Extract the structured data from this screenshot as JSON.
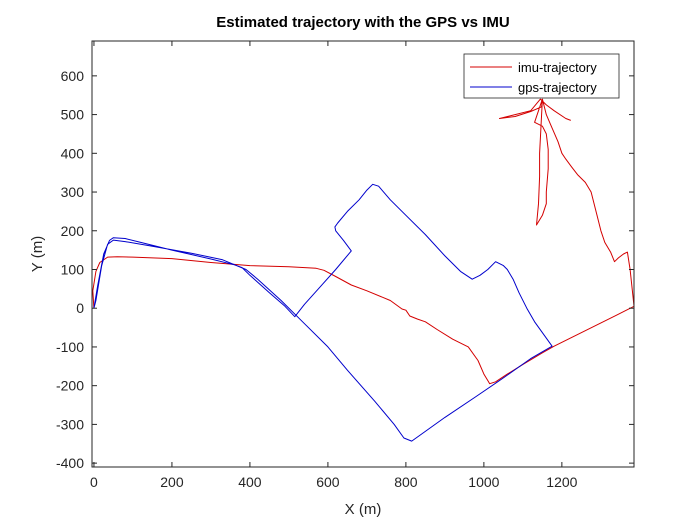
{
  "chart_data": {
    "type": "line",
    "title": "Estimated trajectory with the GPS vs IMU",
    "xlabel": "X (m)",
    "ylabel": "Y (m)",
    "xlim": [
      -5,
      1385
    ],
    "ylim": [
      -410,
      690
    ],
    "xticks": [
      0,
      200,
      400,
      600,
      800,
      1000,
      1200
    ],
    "yticks": [
      -400,
      -300,
      -200,
      -100,
      0,
      100,
      200,
      300,
      400,
      500,
      600
    ],
    "grid": false,
    "legend_position": "top-right",
    "series": [
      {
        "name": "imu-trajectory",
        "color": "#d40000",
        "points": [
          [
            0,
            0
          ],
          [
            -3,
            45
          ],
          [
            5,
            95
          ],
          [
            15,
            118
          ],
          [
            35,
            132
          ],
          [
            60,
            133
          ],
          [
            100,
            132
          ],
          [
            200,
            128
          ],
          [
            300,
            118
          ],
          [
            400,
            110
          ],
          [
            500,
            107
          ],
          [
            570,
            103
          ],
          [
            590,
            98
          ],
          [
            620,
            82
          ],
          [
            660,
            60
          ],
          [
            700,
            45
          ],
          [
            760,
            20
          ],
          [
            790,
            -2
          ],
          [
            800,
            -5
          ],
          [
            810,
            -20
          ],
          [
            830,
            -28
          ],
          [
            850,
            -35
          ],
          [
            880,
            -55
          ],
          [
            920,
            -80
          ],
          [
            960,
            -100
          ],
          [
            985,
            -135
          ],
          [
            1000,
            -170
          ],
          [
            1015,
            -195
          ],
          [
            1030,
            -190
          ],
          [
            1060,
            -170
          ],
          [
            1100,
            -145
          ],
          [
            1150,
            -115
          ],
          [
            1180,
            -98
          ],
          [
            1220,
            -78
          ],
          [
            1260,
            -58
          ],
          [
            1300,
            -38
          ],
          [
            1340,
            -18
          ],
          [
            1385,
            5
          ],
          [
            1383,
            25
          ],
          [
            1375,
            100
          ],
          [
            1368,
            145
          ],
          [
            1358,
            140
          ],
          [
            1345,
            130
          ],
          [
            1335,
            120
          ],
          [
            1325,
            145
          ],
          [
            1310,
            170
          ],
          [
            1300,
            200
          ],
          [
            1290,
            240
          ],
          [
            1275,
            300
          ],
          [
            1260,
            325
          ],
          [
            1240,
            345
          ],
          [
            1225,
            365
          ],
          [
            1210,
            385
          ],
          [
            1200,
            400
          ],
          [
            1190,
            430
          ],
          [
            1175,
            465
          ],
          [
            1160,
            500
          ],
          [
            1150,
            540
          ],
          [
            1140,
            510
          ],
          [
            1130,
            480
          ],
          [
            1150,
            470
          ],
          [
            1160,
            450
          ],
          [
            1165,
            410
          ],
          [
            1165,
            360
          ],
          [
            1160,
            300
          ],
          [
            1160,
            270
          ],
          [
            1150,
            240
          ],
          [
            1135,
            215
          ],
          [
            1140,
            270
          ],
          [
            1143,
            340
          ],
          [
            1143,
            400
          ],
          [
            1146,
            460
          ],
          [
            1150,
            540
          ],
          [
            1148,
            520
          ],
          [
            1120,
            508
          ],
          [
            1080,
            495
          ],
          [
            1040,
            490
          ],
          [
            1080,
            500
          ],
          [
            1120,
            510
          ],
          [
            1145,
            540
          ],
          [
            1160,
            525
          ],
          [
            1180,
            510
          ],
          [
            1210,
            490
          ],
          [
            1223,
            485
          ]
        ]
      },
      {
        "name": "gps-trajectory",
        "color": "#0000cc",
        "points": [
          [
            0,
            0
          ],
          [
            10,
            60
          ],
          [
            25,
            140
          ],
          [
            40,
            175
          ],
          [
            50,
            182
          ],
          [
            80,
            180
          ],
          [
            120,
            170
          ],
          [
            200,
            150
          ],
          [
            300,
            127
          ],
          [
            360,
            112
          ],
          [
            380,
            105
          ],
          [
            400,
            85
          ],
          [
            450,
            40
          ],
          [
            490,
            5
          ],
          [
            515,
            -22
          ],
          [
            540,
            10
          ],
          [
            580,
            55
          ],
          [
            620,
            100
          ],
          [
            660,
            148
          ],
          [
            640,
            175
          ],
          [
            620,
            200
          ],
          [
            618,
            210
          ],
          [
            625,
            220
          ],
          [
            650,
            250
          ],
          [
            680,
            280
          ],
          [
            700,
            305
          ],
          [
            715,
            320
          ],
          [
            730,
            315
          ],
          [
            760,
            280
          ],
          [
            800,
            240
          ],
          [
            850,
            190
          ],
          [
            900,
            135
          ],
          [
            940,
            95
          ],
          [
            970,
            75
          ],
          [
            990,
            85
          ],
          [
            1010,
            100
          ],
          [
            1030,
            120
          ],
          [
            1050,
            110
          ],
          [
            1060,
            100
          ],
          [
            1075,
            75
          ],
          [
            1090,
            40
          ],
          [
            1110,
            0
          ],
          [
            1130,
            -35
          ],
          [
            1155,
            -70
          ],
          [
            1175,
            -98
          ],
          [
            1120,
            -130
          ],
          [
            1050,
            -180
          ],
          [
            980,
            -228
          ],
          [
            900,
            -282
          ],
          [
            840,
            -325
          ],
          [
            815,
            -343
          ],
          [
            795,
            -335
          ],
          [
            770,
            -300
          ],
          [
            720,
            -240
          ],
          [
            650,
            -160
          ],
          [
            600,
            -100
          ],
          [
            540,
            -40
          ],
          [
            480,
            20
          ],
          [
            420,
            75
          ],
          [
            390,
            100
          ],
          [
            330,
            125
          ],
          [
            250,
            142
          ],
          [
            150,
            160
          ],
          [
            80,
            172
          ],
          [
            50,
            176
          ],
          [
            35,
            165
          ],
          [
            20,
            110
          ],
          [
            5,
            20
          ],
          [
            0,
            0
          ]
        ]
      }
    ]
  }
}
